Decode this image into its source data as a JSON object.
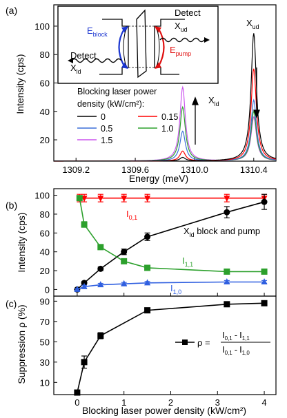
{
  "panel_labels": {
    "a": "(a)",
    "b": "(b)",
    "c": "(c)"
  },
  "chart_data": [
    {
      "panel": "(a)",
      "type": "line",
      "xlabel": "Energy (meV)",
      "ylabel": "Intensity (cps)",
      "xlim": [
        1309.05,
        1310.55
      ],
      "ylim": [
        5,
        115
      ],
      "xticks": [
        1309.2,
        1309.6,
        1310.0,
        1310.4
      ],
      "xticklabels": [
        "1309.2",
        "1309.6",
        "1310.0",
        "1310.4"
      ],
      "yticks": [
        20,
        40,
        60,
        80,
        100
      ],
      "yticklabels": [
        "20",
        "40",
        "60",
        "80",
        "100"
      ],
      "legend_title": "Blocking laser power density (kW/cm²):",
      "legend_title_line1": "Blocking laser power",
      "legend_title_line2": "density (kW/cm²):",
      "series": [
        {
          "name": "0",
          "color": "#000000",
          "baseline": 5,
          "peak_ld": 7.5,
          "peak_ud": 95
        },
        {
          "name": "0.15",
          "color": "#ff0000",
          "baseline": 5,
          "peak_ld": 12,
          "peak_ud": 70
        },
        {
          "name": "0.5",
          "color": "#3a6fd8",
          "baseline": 5,
          "peak_ld": 26,
          "peak_ud": 48
        },
        {
          "name": "1.0",
          "color": "#2ca02c",
          "baseline": 5,
          "peak_ld": 43,
          "peak_ud": 40
        },
        {
          "name": "1.5",
          "color": "#cc55ee",
          "baseline": 5,
          "peak_ld": 57,
          "peak_ud": 36
        }
      ],
      "peak_centers": {
        "ld": 1309.92,
        "ud": 1310.4
      },
      "peak_width": 0.022,
      "annotations": {
        "x_ld": "X",
        "x_ld_sub": "ld",
        "x_ud": "X",
        "x_ud_sub": "ud",
        "inset_detect_ud": "Detect",
        "inset_detect_ud_x": "X",
        "inset_detect_ud_sub": "ud",
        "inset_detect_ld": "Detect",
        "inset_detect_ld_x": "X",
        "inset_detect_ld_sub": "ld",
        "inset_eblock": "E",
        "inset_eblock_sub": "block",
        "inset_epump": "E",
        "inset_epump_sub": "pump"
      }
    },
    {
      "panel": "(b)",
      "type": "line",
      "ylabel": "Intensity (cps)",
      "xlim": [
        -0.5,
        4.25
      ],
      "ylim": [
        -7,
        107
      ],
      "yticks": [
        0,
        20,
        40,
        60,
        80,
        100
      ],
      "yticklabels": [
        "0",
        "20",
        "40",
        "60",
        "80",
        "100"
      ],
      "series": [
        {
          "name": "I0,1",
          "label_main": "I",
          "label_sub": "0,1",
          "color": "#ff0000",
          "marker": "triangle-down",
          "x": [
            0.05,
            0.15,
            0.5,
            1.0,
            1.5,
            3.2,
            4.0
          ],
          "y": [
            97,
            97,
            97,
            97,
            97,
            97,
            97
          ],
          "err": [
            4,
            4,
            4,
            4,
            4,
            4,
            4
          ]
        },
        {
          "name": "Xld block and pump",
          "label_main": "X",
          "label_sub": "ld",
          "label_rest": " block and pump",
          "color": "#000000",
          "marker": "circle",
          "x": [
            0.0,
            0.15,
            0.5,
            1.0,
            1.5,
            3.2,
            4.0
          ],
          "y": [
            0,
            7,
            22,
            40,
            56,
            82,
            93
          ],
          "err": [
            1,
            1.5,
            2,
            3,
            4,
            6,
            8
          ]
        },
        {
          "name": "I1,1",
          "label_main": "I",
          "label_sub": "1,1",
          "color": "#2ca02c",
          "marker": "square",
          "x": [
            0.05,
            0.15,
            0.5,
            1.0,
            1.5,
            3.2,
            4.0
          ],
          "y": [
            97,
            69,
            45,
            30,
            23,
            19,
            19
          ],
          "err": [
            2,
            3,
            2,
            2,
            2,
            2,
            2
          ]
        },
        {
          "name": "I1,0",
          "label_main": "I",
          "label_sub": "1,0",
          "color": "#2f5fe0",
          "marker": "triangle-up",
          "x": [
            0.0,
            0.15,
            0.5,
            1.0,
            1.5,
            3.2,
            4.0
          ],
          "y": [
            0,
            3,
            5,
            6,
            7,
            8,
            8
          ],
          "err": [
            1,
            1.5,
            1.5,
            1.5,
            1.5,
            1.5,
            1.5
          ]
        }
      ]
    },
    {
      "panel": "(c)",
      "type": "line",
      "xlabel": "Blocking laser power density (kW/cm²)",
      "ylabel": "Suppression ρ (%)",
      "xlim": [
        -0.5,
        4.25
      ],
      "ylim": [
        -2,
        95
      ],
      "xticks": [
        0,
        1,
        2,
        3,
        4
      ],
      "xticklabels": [
        "0",
        "1",
        "2",
        "3",
        "4"
      ],
      "yticks": [
        10,
        30,
        50,
        70,
        90
      ],
      "yticklabels": [
        "10",
        "30",
        "50",
        "70",
        "90"
      ],
      "legend": {
        "rho": "ρ =",
        "num_a": "I",
        "num_a_sub": "0,1",
        "num_b": "I",
        "num_b_sub": "1,1",
        "den_a": "I",
        "den_a_sub": "0,1",
        "den_b": "I",
        "den_b_sub": "1,0",
        "minus": "-"
      },
      "series": [
        {
          "name": "ρ",
          "color": "#000000",
          "marker": "square",
          "x": [
            0.0,
            0.15,
            0.5,
            1.5,
            3.2,
            4.0
          ],
          "y": [
            0,
            30,
            56,
            81,
            87,
            88
          ],
          "err": [
            0,
            6,
            3,
            2,
            1,
            1
          ]
        }
      ]
    }
  ]
}
